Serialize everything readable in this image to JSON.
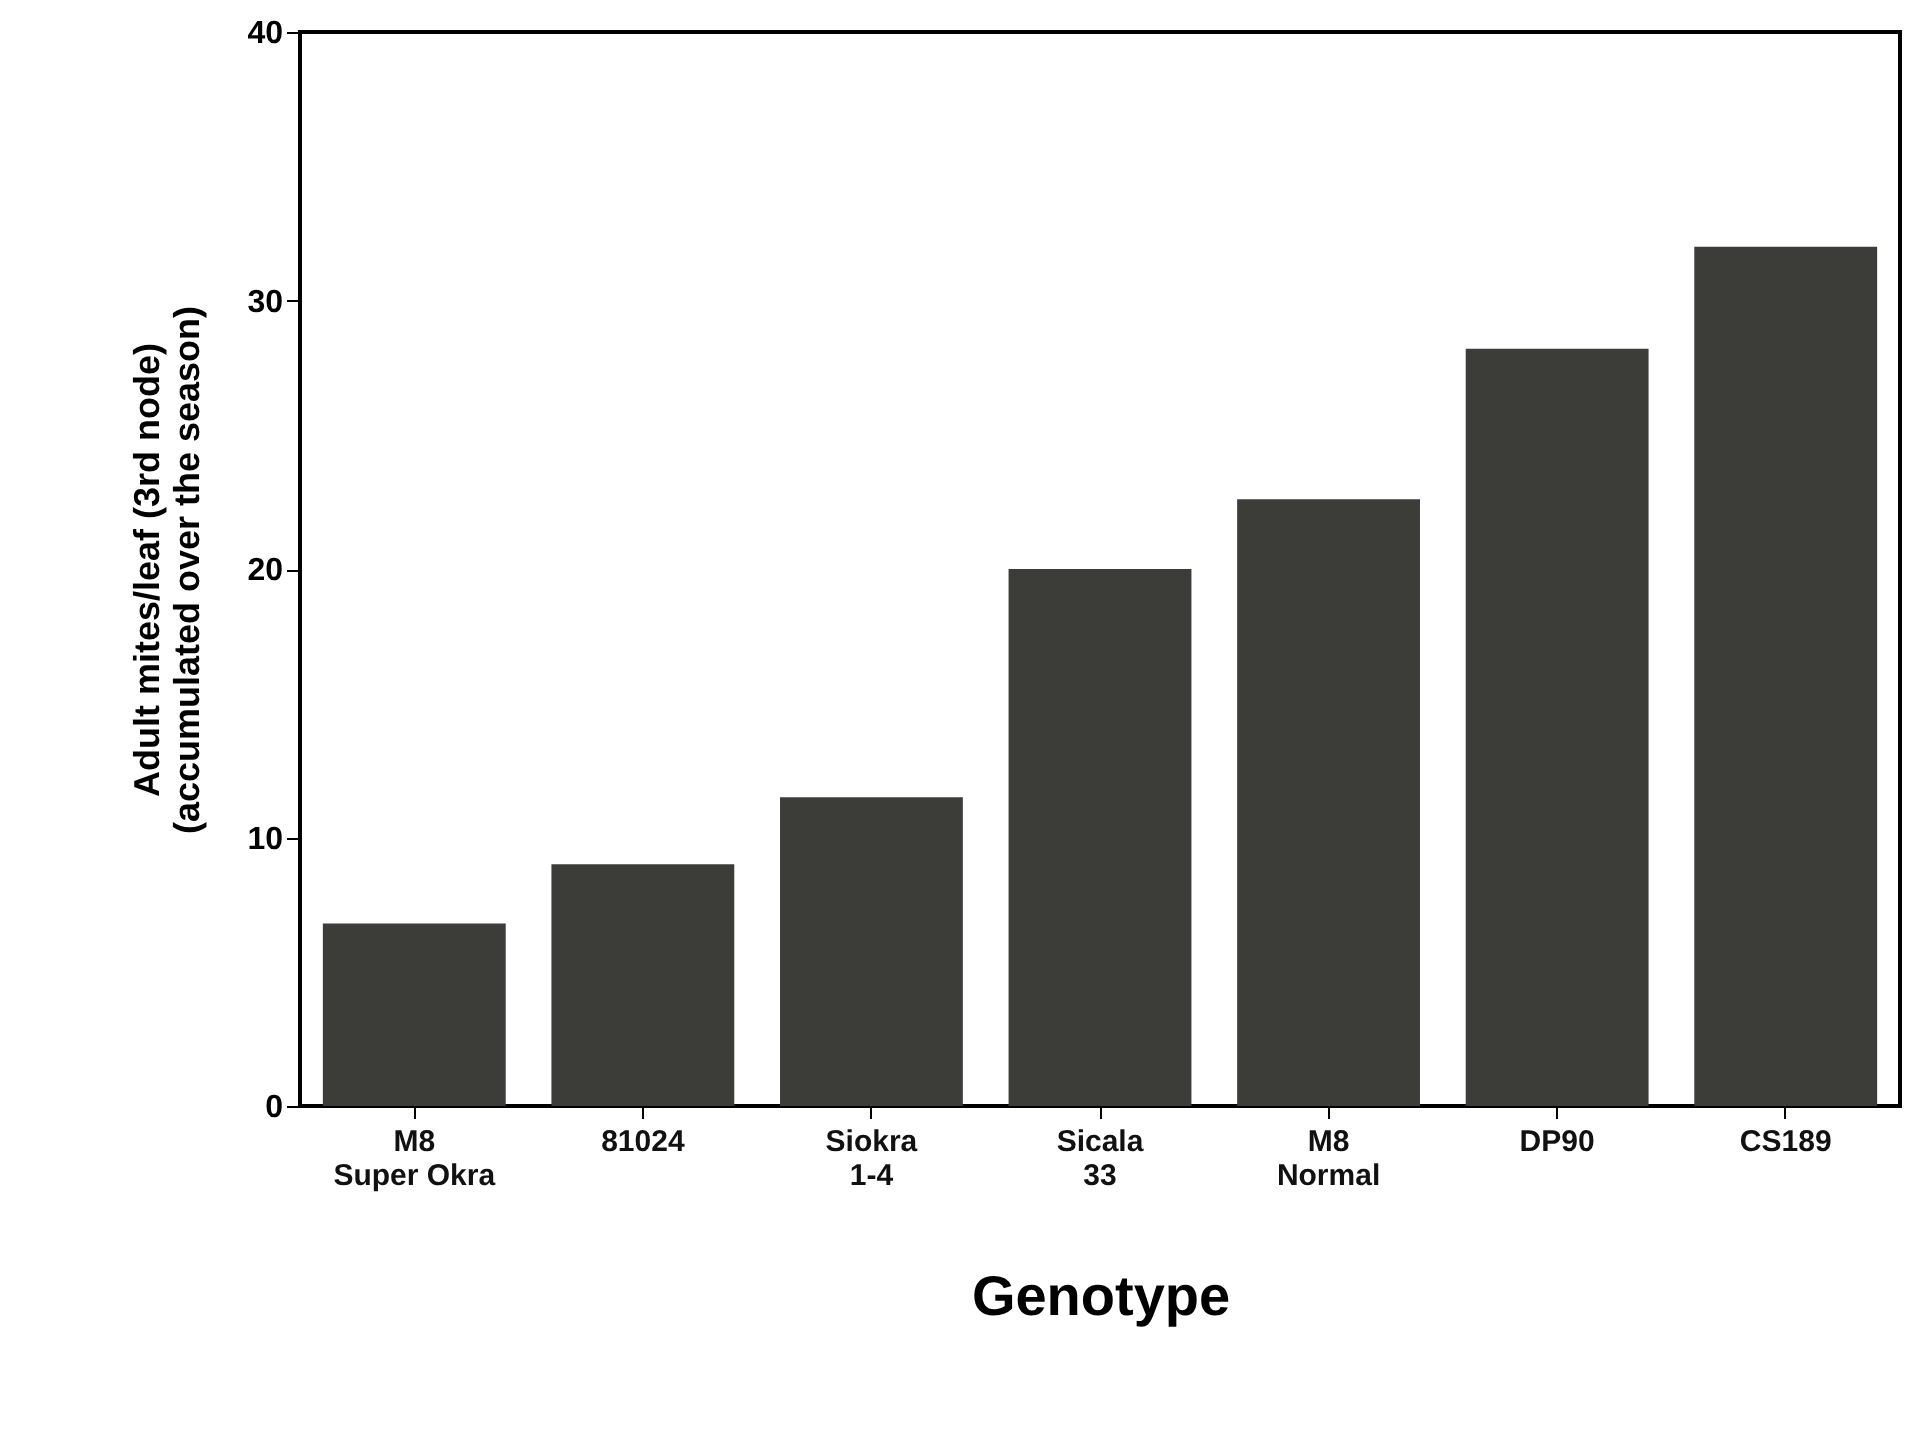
{
  "chart_data": {
    "type": "bar",
    "xlabel": "Genotype",
    "ylabel": "Adult mites/leaf (3rd node)\n(accumulated over the season)",
    "categories": [
      "M8\nSuper Okra",
      "81024",
      "Siokra\n1-4",
      "Sicala\n33",
      "M8\nNormal",
      "DP90",
      "CS189"
    ],
    "values": [
      6.8,
      9.0,
      11.5,
      20.0,
      22.6,
      28.2,
      32.0
    ],
    "color": "#3c3d38",
    "ylim": [
      0,
      40
    ],
    "yticks": [
      0,
      10,
      20,
      30,
      40
    ],
    "grid": false
  }
}
